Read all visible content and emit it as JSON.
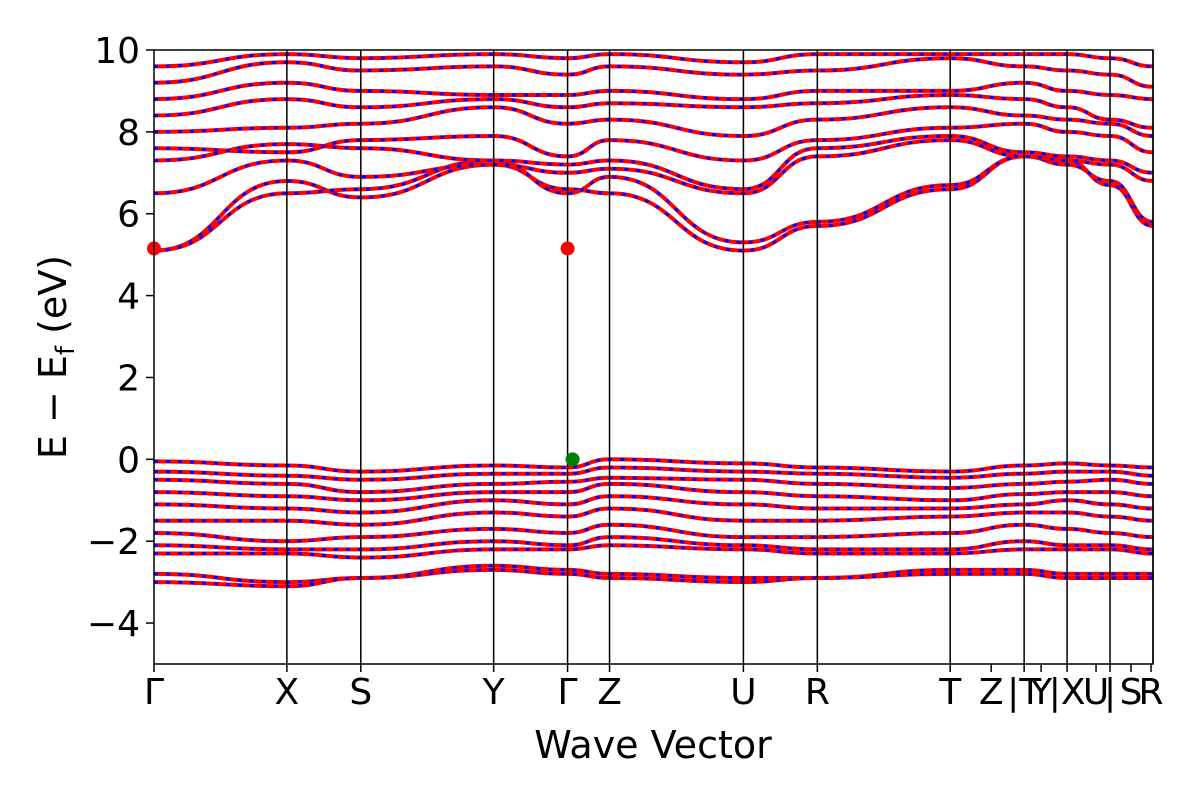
{
  "chart_data": {
    "type": "line",
    "title": "",
    "xlabel": "Wave Vector",
    "ylabel": "E − E",
    "ylabel_sub": "f",
    "ylabel_unit": " (eV)",
    "ylim": [
      -5,
      10
    ],
    "yticks": [
      {
        "value": -4,
        "label": "−4"
      },
      {
        "value": -2,
        "label": "−2"
      },
      {
        "value": 0,
        "label": "0"
      },
      {
        "value": 2,
        "label": "2"
      },
      {
        "value": 4,
        "label": "4"
      },
      {
        "value": 6,
        "label": "6"
      },
      {
        "value": 8,
        "label": "8"
      },
      {
        "value": 10,
        "label": "10"
      }
    ],
    "xlim": [
      0,
      1
    ],
    "kpoints": [
      {
        "pos": 0.0,
        "label": "Γ"
      },
      {
        "pos": 0.133,
        "label": "X"
      },
      {
        "pos": 0.207,
        "label": "S"
      },
      {
        "pos": 0.34,
        "label": "Y"
      },
      {
        "pos": 0.414,
        "label": "Γ"
      },
      {
        "pos": 0.456,
        "label": "Z"
      },
      {
        "pos": 0.59,
        "label": "U"
      },
      {
        "pos": 0.664,
        "label": "R"
      },
      {
        "pos": 0.797,
        "label": "T"
      },
      {
        "pos": 0.838,
        "label": "Z"
      },
      {
        "pos": 0.871,
        "label": "|T"
      },
      {
        "pos": 0.888,
        "label": "Y"
      },
      {
        "pos": 0.914,
        "label": "|X"
      },
      {
        "pos": 0.943,
        "label": "U"
      },
      {
        "pos": 0.957,
        "label": "|"
      },
      {
        "pos": 0.978,
        "label": "S"
      },
      {
        "pos": 0.998,
        "label": "R"
      }
    ],
    "vlines": [
      0.133,
      0.207,
      0.34,
      0.414,
      0.456,
      0.59,
      0.664,
      0.797,
      0.871,
      0.914,
      0.957,
      1.0
    ],
    "series": [
      {
        "color": "#ff0000",
        "overlay_color": "#0000ff",
        "bands_conduction": [
          [
            5.1,
            6.8,
            6.4,
            7.2,
            6.6,
            6.5,
            5.1,
            5.7,
            6.6,
            7.4,
            7.3,
            6.7,
            5.7
          ],
          [
            5.1,
            6.5,
            6.6,
            7.3,
            6.5,
            6.9,
            5.3,
            5.8,
            6.7,
            7.4,
            7.2,
            6.8,
            5.8
          ],
          [
            6.5,
            7.3,
            6.9,
            7.2,
            7.0,
            7.1,
            6.5,
            7.4,
            7.8,
            7.4,
            7.3,
            7.2,
            6.8
          ],
          [
            7.3,
            7.7,
            7.6,
            7.3,
            7.2,
            7.3,
            6.6,
            7.6,
            7.9,
            7.5,
            7.4,
            7.3,
            7.0
          ],
          [
            7.6,
            7.5,
            7.8,
            7.9,
            7.4,
            7.8,
            7.3,
            7.8,
            8.1,
            8.2,
            8.0,
            7.9,
            7.5
          ],
          [
            8.0,
            8.1,
            8.2,
            8.6,
            8.2,
            8.3,
            7.9,
            8.3,
            8.6,
            8.4,
            8.3,
            8.2,
            7.9
          ],
          [
            8.4,
            8.8,
            8.6,
            8.8,
            8.6,
            8.7,
            8.6,
            8.7,
            8.9,
            8.8,
            8.6,
            8.3,
            8.1
          ],
          [
            8.8,
            9.2,
            9.0,
            8.9,
            8.9,
            9.0,
            8.8,
            9.0,
            9.0,
            9.2,
            9.0,
            8.9,
            8.8
          ],
          [
            9.2,
            9.7,
            9.5,
            9.6,
            9.4,
            9.6,
            9.4,
            9.5,
            9.8,
            9.6,
            9.5,
            9.4,
            9.1
          ],
          [
            9.6,
            9.9,
            9.8,
            9.9,
            9.8,
            9.9,
            9.7,
            9.9,
            9.9,
            9.9,
            9.9,
            9.8,
            9.6
          ]
        ],
        "bands_valence": [
          [
            -0.05,
            -0.15,
            -0.3,
            -0.15,
            -0.2,
            0.0,
            -0.1,
            -0.2,
            -0.3,
            -0.15,
            -0.1,
            -0.15,
            -0.2
          ],
          [
            -0.3,
            -0.4,
            -0.5,
            -0.35,
            -0.35,
            -0.2,
            -0.3,
            -0.35,
            -0.45,
            -0.35,
            -0.3,
            -0.3,
            -0.4
          ],
          [
            -0.5,
            -0.6,
            -0.8,
            -0.6,
            -0.55,
            -0.45,
            -0.5,
            -0.6,
            -0.7,
            -0.6,
            -0.55,
            -0.5,
            -0.6
          ],
          [
            -0.8,
            -0.9,
            -1.0,
            -0.8,
            -0.8,
            -0.6,
            -0.8,
            -0.9,
            -1.0,
            -0.85,
            -0.8,
            -0.8,
            -0.9
          ],
          [
            -1.1,
            -1.2,
            -1.3,
            -1.0,
            -1.1,
            -0.9,
            -1.1,
            -1.2,
            -1.2,
            -1.1,
            -1.0,
            -1.1,
            -1.2
          ],
          [
            -1.5,
            -1.5,
            -1.6,
            -1.3,
            -1.4,
            -1.2,
            -1.5,
            -1.5,
            -1.4,
            -1.3,
            -1.3,
            -1.4,
            -1.5
          ],
          [
            -1.8,
            -2.0,
            -1.9,
            -1.7,
            -1.8,
            -1.6,
            -1.9,
            -1.9,
            -1.8,
            -1.6,
            -1.7,
            -1.8,
            -1.9
          ],
          [
            -2.1,
            -2.2,
            -2.2,
            -2.0,
            -2.1,
            -1.9,
            -2.1,
            -2.2,
            -2.2,
            -2.0,
            -2.1,
            -2.1,
            -2.2
          ],
          [
            -2.3,
            -2.3,
            -2.4,
            -2.2,
            -2.2,
            -2.1,
            -2.2,
            -2.3,
            -2.3,
            -2.2,
            -2.2,
            -2.2,
            -2.3
          ],
          [
            -2.8,
            -3.0,
            -2.9,
            -2.6,
            -2.7,
            -2.8,
            -2.9,
            -2.9,
            -2.7,
            -2.7,
            -2.8,
            -2.8,
            -2.8
          ],
          [
            -3.0,
            -3.1,
            -2.9,
            -2.7,
            -2.8,
            -2.9,
            -3.0,
            -2.9,
            -2.8,
            -2.8,
            -2.9,
            -2.9,
            -2.9
          ]
        ]
      }
    ],
    "markers": [
      {
        "x": 0.0,
        "y": 5.15,
        "color": "#ff0000",
        "name": "cbm-marker"
      },
      {
        "x": 0.414,
        "y": 5.15,
        "color": "#ff0000",
        "name": "cbm-marker"
      },
      {
        "x": 0.419,
        "y": 0.0,
        "color": "#008000",
        "name": "vbm-marker"
      }
    ],
    "grid": false
  }
}
